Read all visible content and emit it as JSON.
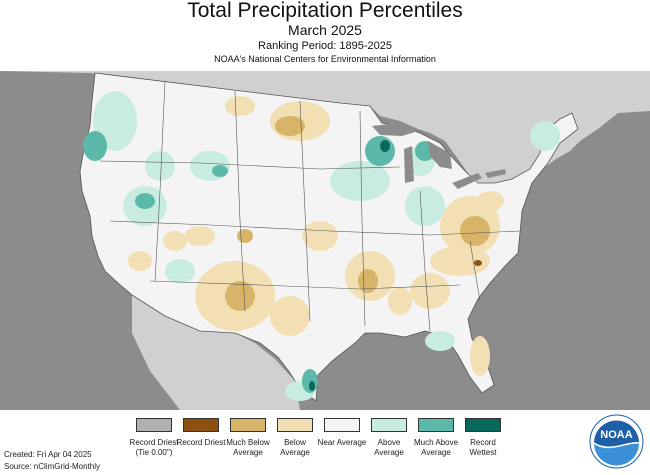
{
  "header": {
    "title": "Total Precipitation Percentiles",
    "subtitle": "March 2025",
    "ranking_period": "Ranking Period: 1895-2025",
    "agency": "NOAA's National Centers for Environmental Information"
  },
  "legend": {
    "items": [
      {
        "label": "Record Driest (Tie 0.00\")",
        "color": "#b0b0b0"
      },
      {
        "label": "Record Driest",
        "color": "#8c5010"
      },
      {
        "label": "Much Below Average",
        "color": "#d8b468"
      },
      {
        "label": "Below Average",
        "color": "#f2e0b4"
      },
      {
        "label": "Near Average",
        "color": "#f4f4f4"
      },
      {
        "label": "Above Average",
        "color": "#c8ece2"
      },
      {
        "label": "Much Above Average",
        "color": "#5cb8a8"
      },
      {
        "label": "Record Wettest",
        "color": "#08685c"
      }
    ]
  },
  "footer": {
    "created": "Created: Fri Apr 04 2025",
    "source": "Source: nClimGrid-Monthly"
  },
  "logo": {
    "text": "NOAA",
    "icon": "noaa-logo-icon"
  },
  "map_colors": {
    "background": "#8c8c8c",
    "land_outside": "#d0d0d0",
    "lakes": "#8c8c8c",
    "state_lines": "#555555"
  }
}
